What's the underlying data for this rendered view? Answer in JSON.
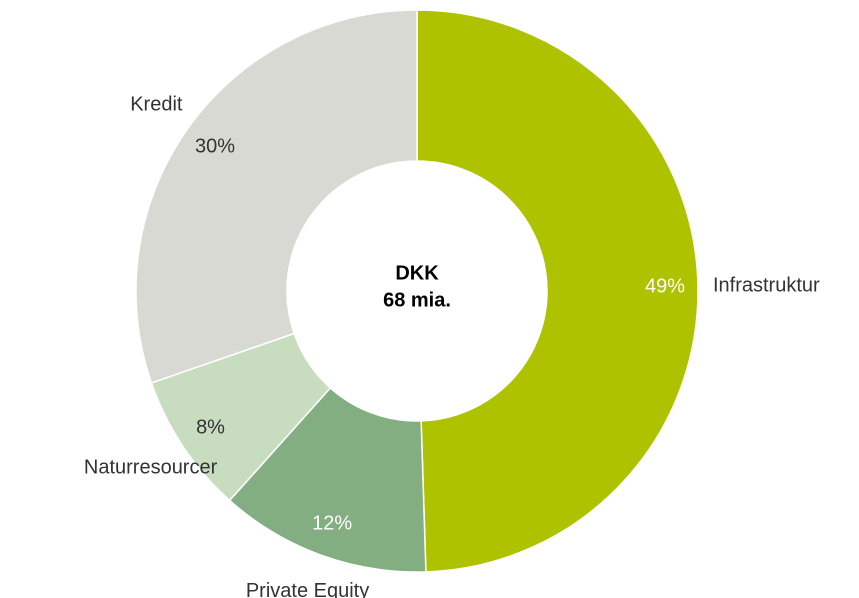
{
  "chart_data": {
    "type": "donut",
    "categories": [
      "Infrastruktur",
      "Private Equity",
      "Naturresourcer",
      "Kredit"
    ],
    "values": [
      49,
      12,
      8,
      30
    ],
    "value_labels": [
      "49%",
      "12%",
      "8%",
      "30%"
    ],
    "colors": [
      "#afc200",
      "#82ae82",
      "#c8dcc0",
      "#d9d9d4"
    ],
    "center_label": [
      "DKK",
      "68 mia."
    ]
  }
}
